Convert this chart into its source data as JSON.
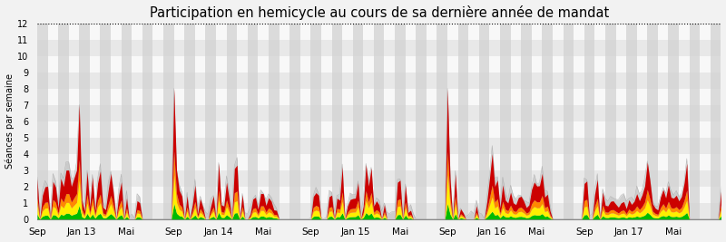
{
  "title": "Participation en hemicycle au cours de sa dernière année de mandat",
  "ylabel": "Séances par semaine",
  "ylim": [
    0,
    12
  ],
  "yticks": [
    0,
    1,
    2,
    3,
    4,
    5,
    6,
    7,
    8,
    9,
    10,
    11,
    12
  ],
  "background_color": "#f2f2f2",
  "colors": {
    "green": "#00bb00",
    "yellow": "#ffee00",
    "orange": "#ff8800",
    "red": "#cc0000",
    "gray_fill": "#c8c8c8",
    "gray_line": "#aaaaaa"
  },
  "x_tick_labels": [
    "Sep",
    "Jan 13",
    "Mai",
    "Sep",
    "Jan 14",
    "Mai",
    "Sep",
    "Jan 15",
    "Mai",
    "Sep",
    "Jan 16",
    "Mai",
    "Sep",
    "Jan 17",
    "Mai"
  ],
  "x_tick_positions": [
    0,
    17,
    34,
    52,
    69,
    86,
    104,
    121,
    138,
    156,
    173,
    190,
    208,
    225,
    242
  ],
  "num_weeks": 261,
  "hband_colors": [
    "#e8e8e8",
    "#f8f8f8"
  ],
  "vband_color": "#d0d0d0",
  "vband_period": 4
}
